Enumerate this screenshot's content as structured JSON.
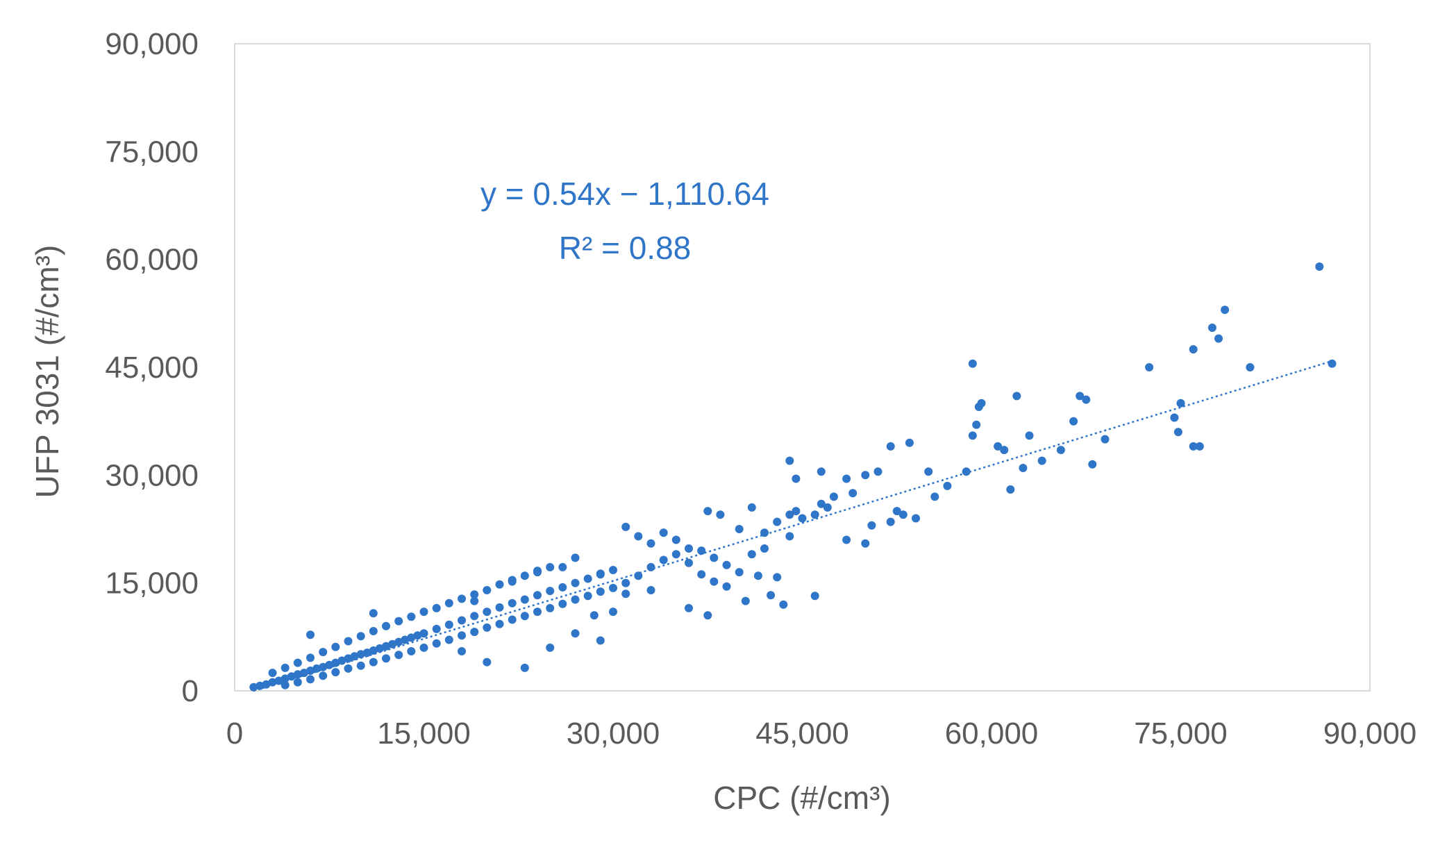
{
  "chart_data": {
    "type": "scatter",
    "xlabel": "CPC (#/cm³)",
    "ylabel": "UFP 3031 (#/cm³)",
    "xlim": [
      0,
      90000
    ],
    "ylim": [
      0,
      90000
    ],
    "x_ticks": [
      0,
      15000,
      30000,
      45000,
      60000,
      75000,
      90000
    ],
    "y_ticks": [
      0,
      15000,
      30000,
      45000,
      60000,
      75000,
      90000
    ],
    "x_tick_labels": [
      "0",
      "15,000",
      "30,000",
      "45,000",
      "60,000",
      "75,000",
      "90,000"
    ],
    "y_tick_labels": [
      "0",
      "15,000",
      "30,000",
      "45,000",
      "60,000",
      "75,000",
      "90,000"
    ],
    "grid": false,
    "legend": "none",
    "marker_color": "#2f75c8",
    "trendline": {
      "type": "linear",
      "slope": 0.54,
      "intercept": -1110.64,
      "equation_text": "y = 0.54x − 1,110.64",
      "r2_text": "R² = 0.88",
      "style": "dotted",
      "color": "#2f75c8"
    },
    "series": [
      {
        "points": [
          [
            1500,
            500
          ],
          [
            2000,
            700
          ],
          [
            2500,
            900
          ],
          [
            3000,
            1200
          ],
          [
            3500,
            1400
          ],
          [
            4000,
            1700
          ],
          [
            4500,
            2000
          ],
          [
            5000,
            2300
          ],
          [
            5500,
            2500
          ],
          [
            6000,
            2800
          ],
          [
            6500,
            3100
          ],
          [
            7000,
            3300
          ],
          [
            7500,
            3600
          ],
          [
            8000,
            3900
          ],
          [
            8500,
            4200
          ],
          [
            9000,
            4500
          ],
          [
            9500,
            4800
          ],
          [
            10000,
            5100
          ],
          [
            10500,
            5300
          ],
          [
            11000,
            5600
          ],
          [
            11500,
            5900
          ],
          [
            12000,
            6200
          ],
          [
            12500,
            6500
          ],
          [
            13000,
            6800
          ],
          [
            13500,
            7100
          ],
          [
            14000,
            7400
          ],
          [
            14500,
            7700
          ],
          [
            15000,
            8000
          ],
          [
            16000,
            8600
          ],
          [
            17000,
            9200
          ],
          [
            18000,
            9800
          ],
          [
            19000,
            10400
          ],
          [
            20000,
            11000
          ],
          [
            21000,
            11600
          ],
          [
            22000,
            12200
          ],
          [
            23000,
            12700
          ],
          [
            24000,
            13300
          ],
          [
            25000,
            13900
          ],
          [
            26000,
            14400
          ],
          [
            27000,
            15000
          ],
          [
            28000,
            15600
          ],
          [
            29000,
            16200
          ],
          [
            30000,
            16800
          ],
          [
            3000,
            2500
          ],
          [
            4000,
            3200
          ],
          [
            5000,
            3900
          ],
          [
            6000,
            4600
          ],
          [
            7000,
            5400
          ],
          [
            8000,
            6100
          ],
          [
            9000,
            6900
          ],
          [
            10000,
            7600
          ],
          [
            11000,
            8300
          ],
          [
            12000,
            9000
          ],
          [
            13000,
            9700
          ],
          [
            14000,
            10300
          ],
          [
            15000,
            11000
          ],
          [
            16000,
            11500
          ],
          [
            17000,
            12200
          ],
          [
            18000,
            12800
          ],
          [
            19000,
            13400
          ],
          [
            20000,
            14000
          ],
          [
            21000,
            14800
          ],
          [
            22000,
            15400
          ],
          [
            23000,
            16000
          ],
          [
            24000,
            16700
          ],
          [
            25000,
            17200
          ],
          [
            4000,
            800
          ],
          [
            5000,
            1200
          ],
          [
            6000,
            1600
          ],
          [
            7000,
            2100
          ],
          [
            8000,
            2600
          ],
          [
            9000,
            3100
          ],
          [
            10000,
            3500
          ],
          [
            11000,
            4000
          ],
          [
            12000,
            4500
          ],
          [
            13000,
            5000
          ],
          [
            14000,
            5500
          ],
          [
            15000,
            6000
          ],
          [
            16000,
            6600
          ],
          [
            17000,
            7100
          ],
          [
            18000,
            7700
          ],
          [
            19000,
            8200
          ],
          [
            20000,
            8800
          ],
          [
            21000,
            9300
          ],
          [
            22000,
            9900
          ],
          [
            23000,
            10400
          ],
          [
            24000,
            11000
          ],
          [
            25000,
            11500
          ],
          [
            26000,
            12100
          ],
          [
            27000,
            12700
          ],
          [
            28000,
            13200
          ],
          [
            29000,
            13800
          ],
          [
            30000,
            14300
          ],
          [
            6000,
            7800
          ],
          [
            11000,
            10800
          ],
          [
            19000,
            12500
          ],
          [
            22000,
            15200
          ],
          [
            24000,
            16500
          ],
          [
            26000,
            17200
          ],
          [
            27000,
            18500
          ],
          [
            29000,
            16300
          ],
          [
            31000,
            22800
          ],
          [
            32000,
            21500
          ],
          [
            33000,
            20500
          ],
          [
            34000,
            22000
          ],
          [
            35000,
            21000
          ],
          [
            36000,
            19800
          ],
          [
            37000,
            19500
          ],
          [
            38000,
            18500
          ],
          [
            39000,
            17500
          ],
          [
            40000,
            16500
          ],
          [
            31000,
            15000
          ],
          [
            32000,
            16000
          ],
          [
            33000,
            17200
          ],
          [
            34000,
            18200
          ],
          [
            35000,
            19000
          ],
          [
            36000,
            17800
          ],
          [
            37000,
            16200
          ],
          [
            38000,
            15200
          ],
          [
            39000,
            14500
          ],
          [
            36000,
            11500
          ],
          [
            37500,
            10500
          ],
          [
            40500,
            12500
          ],
          [
            42500,
            13300
          ],
          [
            43500,
            12000
          ],
          [
            46000,
            13200
          ],
          [
            43000,
            15800
          ],
          [
            41500,
            16000
          ],
          [
            18000,
            5500
          ],
          [
            20000,
            4000
          ],
          [
            23000,
            3200
          ],
          [
            25000,
            6000
          ],
          [
            27000,
            8000
          ],
          [
            29000,
            7000
          ],
          [
            31000,
            13500
          ],
          [
            33000,
            14000
          ],
          [
            30000,
            11000
          ],
          [
            28500,
            10500
          ],
          [
            37500,
            25000
          ],
          [
            38500,
            24500
          ],
          [
            40000,
            22500
          ],
          [
            41000,
            25500
          ],
          [
            42000,
            22000
          ],
          [
            43000,
            23500
          ],
          [
            44000,
            24500
          ],
          [
            44500,
            25000
          ],
          [
            45000,
            24000
          ],
          [
            46000,
            24500
          ],
          [
            46500,
            26000
          ],
          [
            47000,
            25500
          ],
          [
            47500,
            27000
          ],
          [
            44000,
            32000
          ],
          [
            44500,
            29500
          ],
          [
            46500,
            30500
          ],
          [
            48500,
            29500
          ],
          [
            49000,
            27500
          ],
          [
            50000,
            30000
          ],
          [
            51000,
            30500
          ],
          [
            50500,
            23000
          ],
          [
            52000,
            23500
          ],
          [
            52500,
            25000
          ],
          [
            53000,
            24500
          ],
          [
            53500,
            34500
          ],
          [
            52000,
            34000
          ],
          [
            55000,
            30500
          ],
          [
            56500,
            28500
          ],
          [
            54000,
            24000
          ],
          [
            55500,
            27000
          ],
          [
            48500,
            21000
          ],
          [
            50000,
            20500
          ],
          [
            44000,
            21500
          ],
          [
            42000,
            19800
          ],
          [
            41000,
            19000
          ],
          [
            58000,
            30500
          ],
          [
            58500,
            35500
          ],
          [
            58800,
            37000
          ],
          [
            59000,
            39500
          ],
          [
            59200,
            40000
          ],
          [
            58500,
            45500
          ],
          [
            60500,
            34000
          ],
          [
            61000,
            33500
          ],
          [
            61500,
            28000
          ],
          [
            62000,
            41000
          ],
          [
            62500,
            31000
          ],
          [
            63000,
            35500
          ],
          [
            64000,
            32000
          ],
          [
            65500,
            33500
          ],
          [
            66500,
            37500
          ],
          [
            67000,
            41000
          ],
          [
            67500,
            40500
          ],
          [
            68000,
            31500
          ],
          [
            69000,
            35000
          ],
          [
            72500,
            45000
          ],
          [
            74500,
            38000
          ],
          [
            74800,
            36000
          ],
          [
            75000,
            40000
          ],
          [
            76000,
            34000
          ],
          [
            76500,
            34000
          ],
          [
            76000,
            47500
          ],
          [
            77500,
            50500
          ],
          [
            78000,
            49000
          ],
          [
            78500,
            53000
          ],
          [
            80500,
            45000
          ],
          [
            86000,
            59000
          ],
          [
            87000,
            45500
          ]
        ]
      }
    ]
  }
}
